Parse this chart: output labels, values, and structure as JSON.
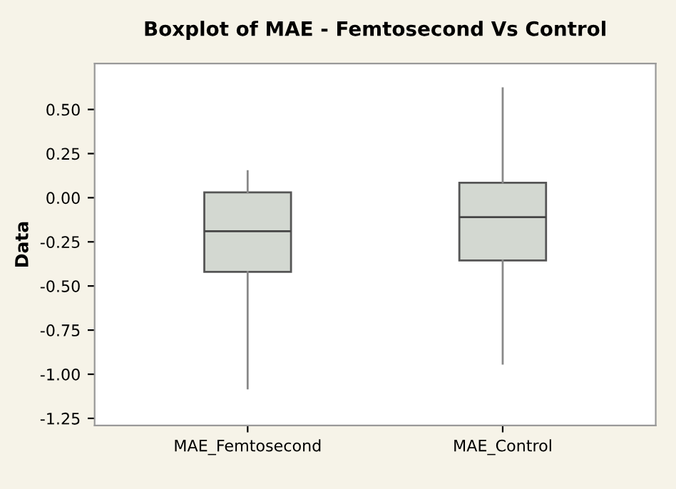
{
  "chart_data": {
    "type": "box",
    "title": "Boxplot of MAE - Femtosecond Vs Control",
    "ylabel": "Data",
    "categories": [
      "MAE_Femtosecond",
      "MAE_Control"
    ],
    "boxes": [
      {
        "low": -1.08,
        "q1": -0.42,
        "median": -0.19,
        "q3": 0.03,
        "high": 0.15
      },
      {
        "low": -0.94,
        "q1": -0.355,
        "median": -0.11,
        "q3": 0.085,
        "high": 0.62
      }
    ],
    "color": "#d3d8d1",
    "ylim": [
      -1.29,
      0.76
    ],
    "yticks": [
      -1.25,
      {
        "value": -1,
        "label": "-1.00"
      },
      -0.75,
      {
        "value": -0.5,
        "label": "-0.50"
      },
      -0.25,
      {
        "value": 0,
        "label": "0.00"
      },
      0.25,
      {
        "value": 0.5,
        "label": "0.50"
      }
    ],
    "grid": false
  }
}
